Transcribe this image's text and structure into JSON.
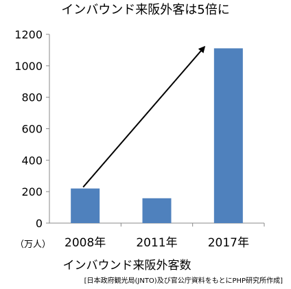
{
  "chart_data": {
    "type": "bar",
    "title": "インバウンド来阪外客は5倍に",
    "categories": [
      "2008年",
      "2011年",
      "2017年"
    ],
    "values": [
      220,
      158,
      1111
    ],
    "ylim": [
      0,
      1200
    ],
    "yticks": [
      0,
      200,
      400,
      600,
      800,
      1000,
      1200
    ],
    "ylabel": "（万人）",
    "xlabel": "インバウンド来阪外客数",
    "source": "[日本政府観光局(JNTO)及び官公庁資料をもとにPHP研究所作成]",
    "bar_color": "#4f81bd",
    "grid": false,
    "annotation": {
      "type": "arrow",
      "from": {
        "category": "2008年",
        "value": 220
      },
      "to": {
        "category": "2017年",
        "value": 1120
      },
      "color": "#000000"
    }
  }
}
